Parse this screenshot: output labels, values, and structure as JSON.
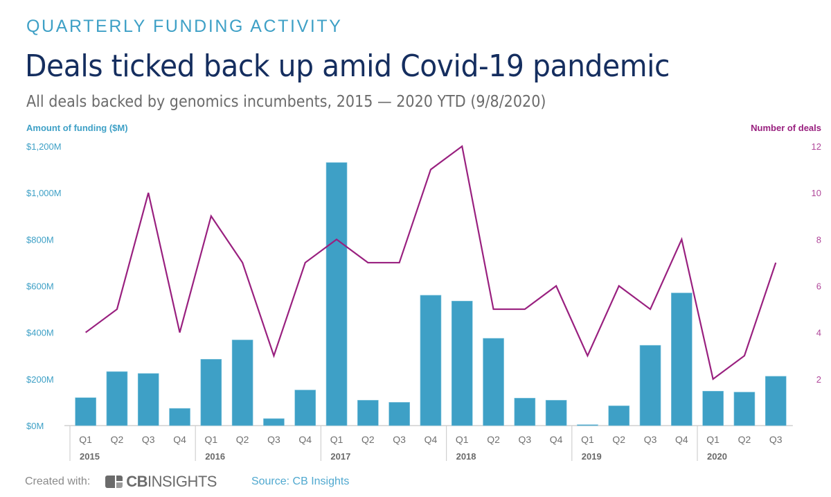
{
  "header": {
    "kicker": "QUARTERLY FUNDING ACTIVITY",
    "title": "Deals ticked back up amid Covid-19 pandemic",
    "subtitle": "All deals backed by genomics incumbents, 2015 — 2020 YTD (9/8/2020)"
  },
  "colors": {
    "bars": "#3ea0c6",
    "line": "#99207f",
    "title": "#152e5f",
    "axis": "#d0d0d0"
  },
  "chart_data": {
    "type": "bar+line",
    "title": "Deals ticked back up amid Covid-19 pandemic",
    "ylabel_left": "Amount of funding ($M)",
    "ylabel_right": "Number of deals",
    "ylim_left": [
      0,
      1200
    ],
    "ylim_right": [
      0,
      12
    ],
    "yticks_left": [
      "$0M",
      "$200M",
      "$400M",
      "$600M",
      "$800M",
      "$1,000M",
      "$1,200M"
    ],
    "yticks_right": [
      "2",
      "4",
      "6",
      "8",
      "10",
      "12"
    ],
    "years": [
      {
        "year": "2015",
        "quarters": [
          "Q1",
          "Q2",
          "Q3",
          "Q4"
        ]
      },
      {
        "year": "2016",
        "quarters": [
          "Q1",
          "Q2",
          "Q3",
          "Q4"
        ]
      },
      {
        "year": "2017",
        "quarters": [
          "Q1",
          "Q2",
          "Q3",
          "Q4"
        ]
      },
      {
        "year": "2018",
        "quarters": [
          "Q1",
          "Q2",
          "Q3",
          "Q4"
        ]
      },
      {
        "year": "2019",
        "quarters": [
          "Q1",
          "Q2",
          "Q3",
          "Q4"
        ]
      },
      {
        "year": "2020",
        "quarters": [
          "Q1",
          "Q2",
          "Q3"
        ]
      }
    ],
    "series": [
      {
        "name": "Amount of funding ($M)",
        "type": "bar",
        "axis": "left",
        "values": [
          120,
          232,
          224,
          74,
          285,
          368,
          30,
          153,
          1130,
          109,
          100,
          560,
          535,
          375,
          118,
          109,
          4,
          85,
          345,
          570,
          148,
          144,
          212
        ]
      },
      {
        "name": "Number of deals",
        "type": "line",
        "axis": "right",
        "values": [
          4,
          5,
          10,
          4,
          9,
          7,
          3,
          7,
          8,
          7,
          7,
          11,
          12,
          5,
          5,
          6,
          3,
          6,
          5,
          8,
          2,
          3,
          7
        ]
      }
    ],
    "grid": false,
    "legend": "axis titles top-left and top-right"
  },
  "footer": {
    "created_with": "Created with:",
    "logo_bold": "CB",
    "logo_light": "INSIGHTS",
    "source": "Source: CB Insights"
  }
}
